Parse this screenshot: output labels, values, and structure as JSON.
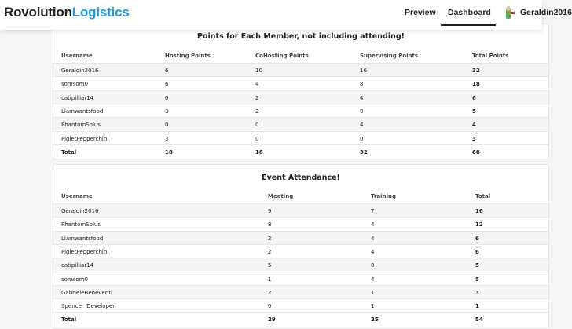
{
  "header": {
    "brand_main": "Rovolution",
    "brand_accent": "Logistics",
    "nav": [
      "Preview",
      "Dashboard"
    ],
    "user": "Geraldin2016"
  },
  "tables": [
    {
      "title": "Points for Each Member, not including attending!",
      "columns": [
        "Username",
        "Hosting Points",
        "CoHosting Points",
        "Supervising Points",
        "Total Points"
      ],
      "rows": [
        [
          "Geraldin2016",
          6,
          10,
          16,
          32
        ],
        [
          "somsom0",
          6,
          4,
          8,
          18
        ],
        [
          "catipilliar14",
          0,
          2,
          4,
          6
        ],
        [
          "Liamwantsfood",
          3,
          2,
          0,
          5
        ],
        [
          "PhantomSolus",
          0,
          0,
          4,
          4
        ],
        [
          "PigletPepperchini",
          3,
          0,
          0,
          3
        ]
      ],
      "total": [
        "Total",
        18,
        18,
        32,
        68
      ]
    },
    {
      "title": "Event Attendance!",
      "columns": [
        "Username",
        "Meeting",
        "Training",
        "Total"
      ],
      "rows": [
        [
          "Geraldin2016",
          9,
          7,
          16
        ],
        [
          "PhantomSolus",
          8,
          4,
          12
        ],
        [
          "Liamwantsfood",
          2,
          4,
          6
        ],
        [
          "PigletPepperchini",
          2,
          4,
          6
        ],
        [
          "catipilliar14",
          5,
          0,
          5
        ],
        [
          "somsom0",
          1,
          4,
          5
        ],
        [
          "GabrieleBeneventi",
          2,
          1,
          3
        ],
        [
          "Spencer_Developer",
          0,
          1,
          1
        ]
      ],
      "total": [
        "Total",
        29,
        25,
        54
      ]
    }
  ]
}
